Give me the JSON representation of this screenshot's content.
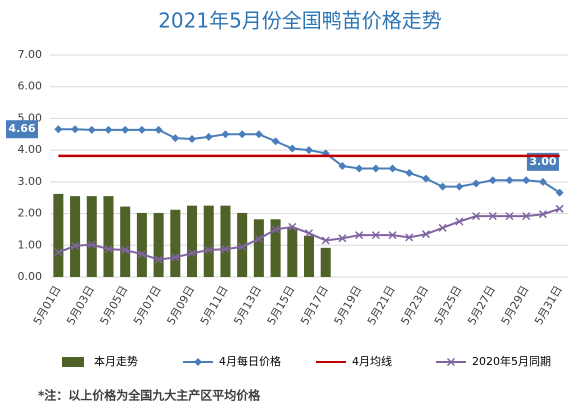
{
  "chart_data": {
    "type": "combo",
    "title": "2021年5月份全国鸭苗价格走势",
    "note": "*注：以上价格为全国九大主产区平均价格",
    "categories": [
      "5月01日",
      null,
      "5月03日",
      null,
      "5月05日",
      null,
      "5月07日",
      null,
      "5月09日",
      null,
      "5月11日",
      null,
      "5月13日",
      null,
      "5月15日",
      null,
      "5月17日",
      null,
      "5月19日",
      null,
      "5月21日",
      null,
      "5月23日",
      null,
      "5月25日",
      null,
      "5月27日",
      null,
      "5月29日",
      null,
      "5月31日"
    ],
    "ylim": [
      0,
      7
    ],
    "yticks": [
      {
        "value": 0,
        "label": "0.00"
      },
      {
        "value": 1,
        "label": "1.00"
      },
      {
        "value": 2,
        "label": "2.00"
      },
      {
        "value": 3,
        "label": "3.00"
      },
      {
        "value": 4,
        "label": "4.00"
      },
      {
        "value": 5,
        "label": "5.00"
      },
      {
        "value": 6,
        "label": "6.00"
      },
      {
        "value": 7,
        "label": "7.00"
      }
    ],
    "grid": true,
    "legend": "bottom",
    "series": [
      {
        "name": "本月走势",
        "kind": "bar",
        "color": "#4f6228",
        "values": [
          2.62,
          2.55,
          2.55,
          2.55,
          2.22,
          2.02,
          2.02,
          2.12,
          2.25,
          2.25,
          2.25,
          2.02,
          1.82,
          1.82,
          1.55,
          1.3,
          0.92,
          null,
          null,
          null,
          null,
          null,
          null,
          null,
          null,
          null,
          null,
          null,
          null,
          null,
          null
        ]
      },
      {
        "name": "4月每日价格",
        "kind": "line",
        "marker": "diamond",
        "color": "#4a7ebb",
        "values": [
          4.66,
          4.66,
          4.64,
          4.64,
          4.64,
          4.64,
          4.64,
          4.38,
          4.35,
          4.42,
          4.5,
          4.5,
          4.5,
          4.28,
          4.05,
          4.0,
          3.9,
          3.5,
          3.42,
          3.42,
          3.42,
          3.28,
          3.1,
          2.85,
          2.85,
          2.95,
          3.05,
          3.05,
          3.05,
          3.0,
          2.66
        ],
        "value_labels": [
          "4.66",
          null,
          null,
          null,
          null,
          null,
          null,
          null,
          null,
          null,
          null,
          null,
          null,
          null,
          null,
          null,
          null,
          null,
          null,
          null,
          null,
          null,
          null,
          null,
          null,
          null,
          null,
          null,
          null,
          "3.00",
          null
        ]
      },
      {
        "name": "4月均线",
        "kind": "line",
        "marker": "none",
        "color": "#c00000",
        "values": [
          3.82,
          3.82,
          3.82,
          3.82,
          3.82,
          3.82,
          3.82,
          3.82,
          3.82,
          3.82,
          3.82,
          3.82,
          3.82,
          3.82,
          3.82,
          3.82,
          3.82,
          3.82,
          3.82,
          3.82,
          3.82,
          3.82,
          3.82,
          3.82,
          3.82,
          3.82,
          3.82,
          3.82,
          3.82,
          3.82,
          3.82
        ]
      },
      {
        "name": "2020年5月同期",
        "kind": "line",
        "marker": "x",
        "color": "#8064a2",
        "values": [
          0.78,
          0.98,
          1.02,
          0.88,
          0.85,
          0.72,
          0.55,
          0.62,
          0.75,
          0.85,
          0.88,
          0.95,
          1.2,
          1.5,
          1.58,
          1.38,
          1.15,
          1.22,
          1.32,
          1.32,
          1.32,
          1.25,
          1.35,
          1.55,
          1.75,
          1.92,
          1.92,
          1.92,
          1.92,
          1.98,
          2.15
        ]
      }
    ]
  }
}
